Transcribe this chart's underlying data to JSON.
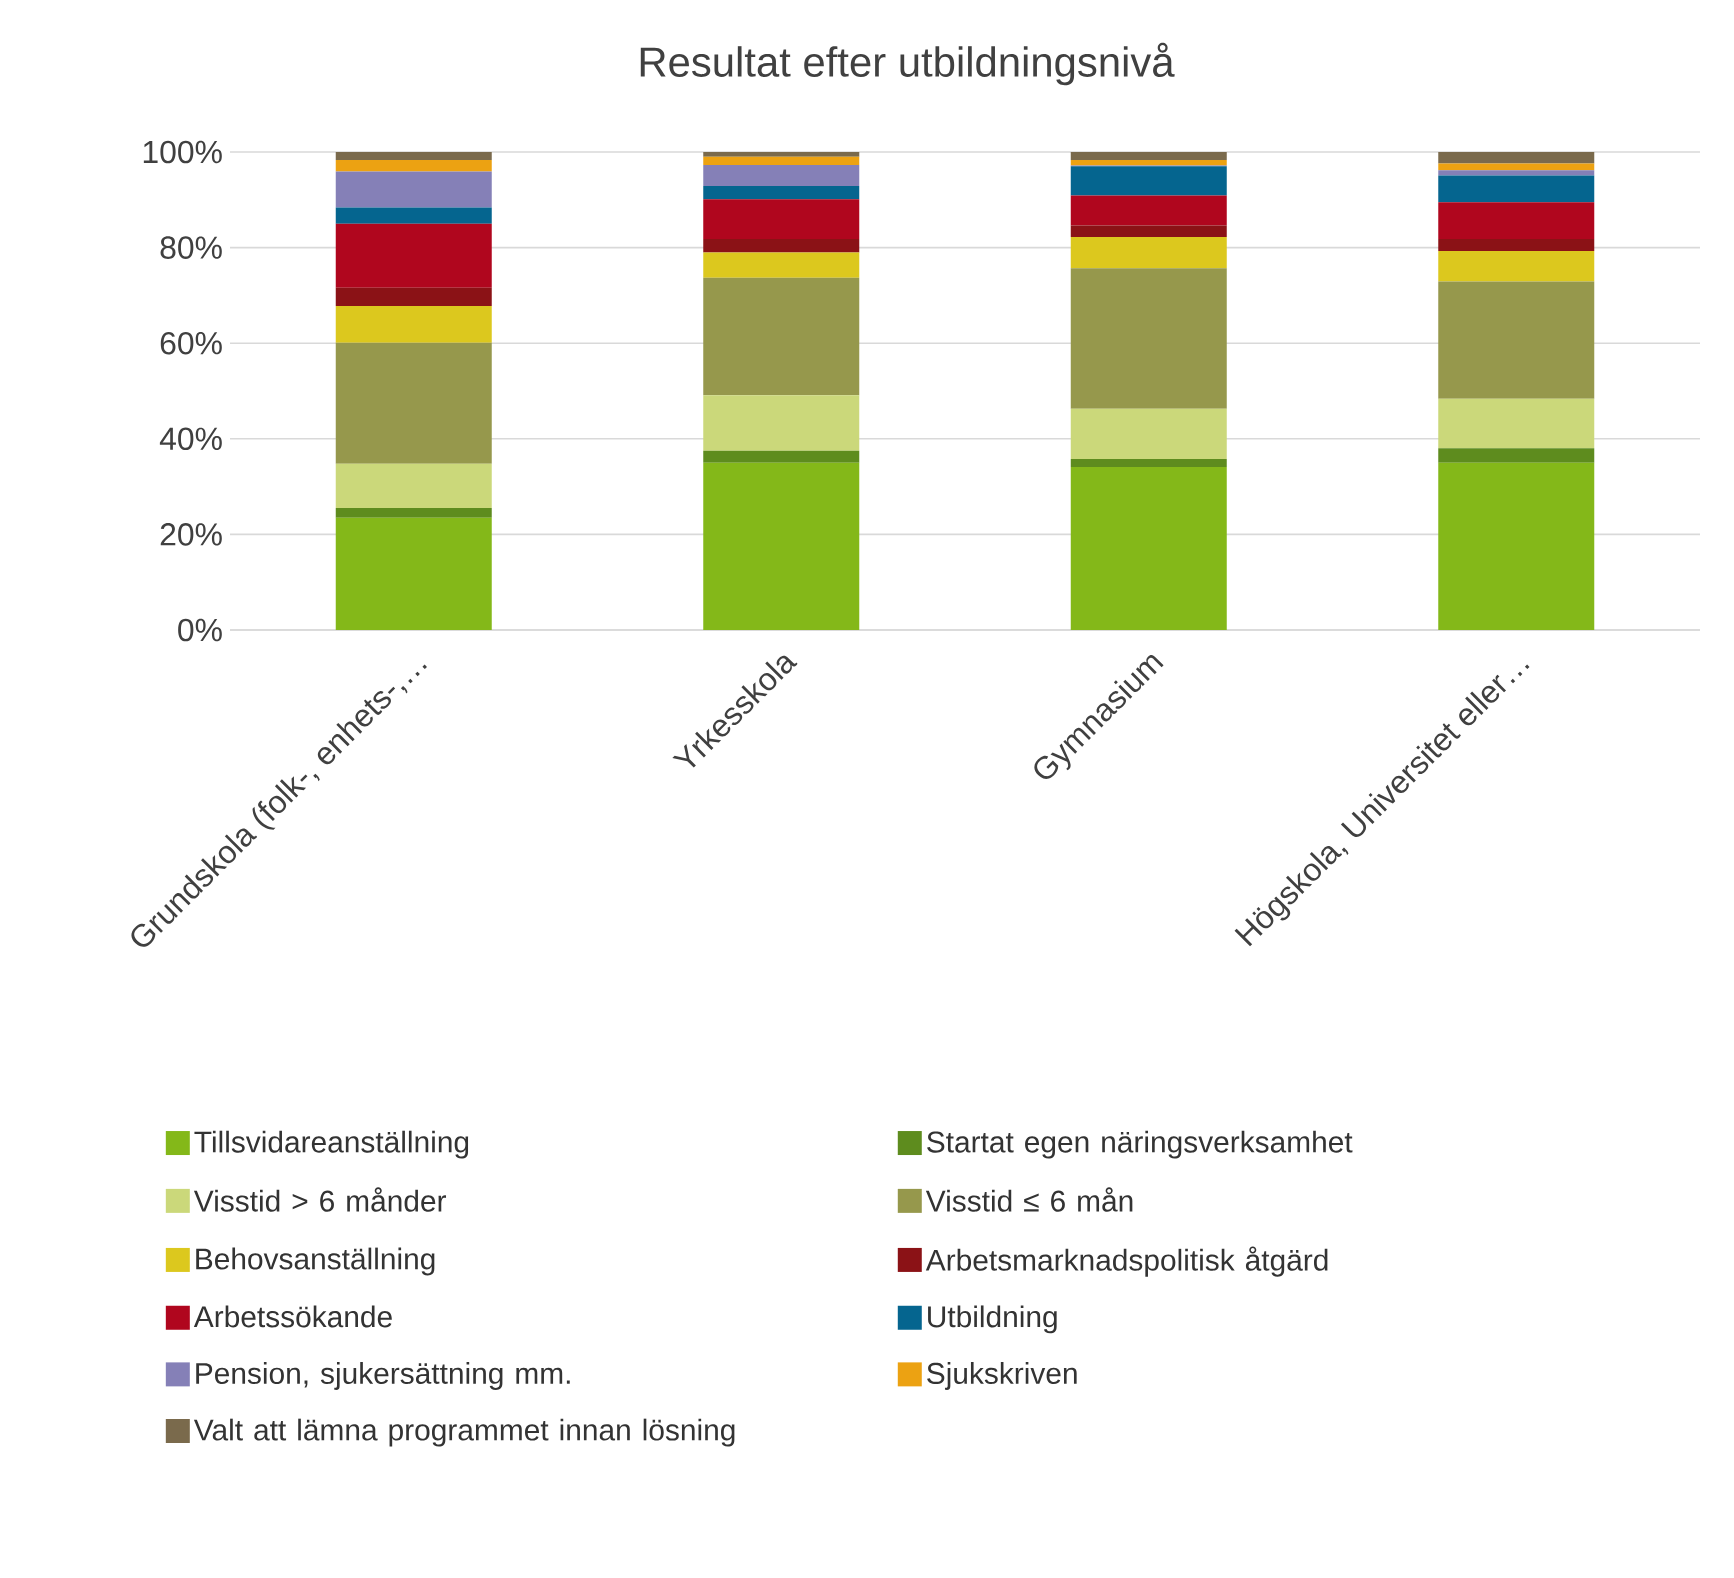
{
  "chart_data": {
    "type": "bar",
    "stacked": true,
    "title": "Resultat efter utbildningsnivå",
    "categories": [
      "Grundskola (folk-, enhets-,…",
      "Yrkesskola",
      "Gymnasium",
      "Högskola, Universitet eller…"
    ],
    "series": [
      {
        "name": "Tillsvidareanställning",
        "color": "#84b819",
        "values": [
          23.5,
          35.0,
          34.1,
          35.0
        ]
      },
      {
        "name": "Startat egen näringsverksamhet",
        "color": "#5e8c1e",
        "values": [
          2.0,
          2.5,
          1.7,
          3.0
        ]
      },
      {
        "name": "Visstid > 6 månder",
        "color": "#cbd87a",
        "values": [
          9.3,
          11.6,
          10.5,
          10.4
        ]
      },
      {
        "name": "Visstid ≤ 6 mån",
        "color": "#96984c",
        "values": [
          25.3,
          24.6,
          29.4,
          24.5
        ]
      },
      {
        "name": "Behovsanställning",
        "color": "#dcc81e",
        "values": [
          7.7,
          5.3,
          6.5,
          6.4
        ]
      },
      {
        "name": "Arbetsmarknadspolitisk åtgärd",
        "color": "#8b1216",
        "values": [
          3.8,
          2.8,
          2.4,
          2.5
        ]
      },
      {
        "name": "Arbetssökande",
        "color": "#b0061e",
        "values": [
          13.4,
          8.3,
          6.3,
          7.7
        ]
      },
      {
        "name": "Utbildning",
        "color": "#05658f",
        "values": [
          3.4,
          2.8,
          6.1,
          5.6
        ]
      },
      {
        "name": "Pension, sjukersättning mm.",
        "color": "#8580b7",
        "values": [
          7.5,
          4.4,
          0.2,
          1.1
        ]
      },
      {
        "name": "Sjukskriven",
        "color": "#eca212",
        "values": [
          2.4,
          1.7,
          1.1,
          1.4
        ]
      },
      {
        "name": "Valt att lämna programmet innan lösning",
        "color": "#7a6a4c",
        "values": [
          1.7,
          1.0,
          1.7,
          2.4
        ]
      }
    ],
    "ylim": [
      0,
      100
    ],
    "yticks": [
      {
        "value": 0,
        "label": "0%"
      },
      {
        "value": 20,
        "label": "20%"
      },
      {
        "value": 40,
        "label": "40%"
      },
      {
        "value": 60,
        "label": "60%"
      },
      {
        "value": 80,
        "label": "80%"
      },
      {
        "value": 100,
        "label": "100%"
      }
    ],
    "grid": "y",
    "legend": "bottom"
  }
}
